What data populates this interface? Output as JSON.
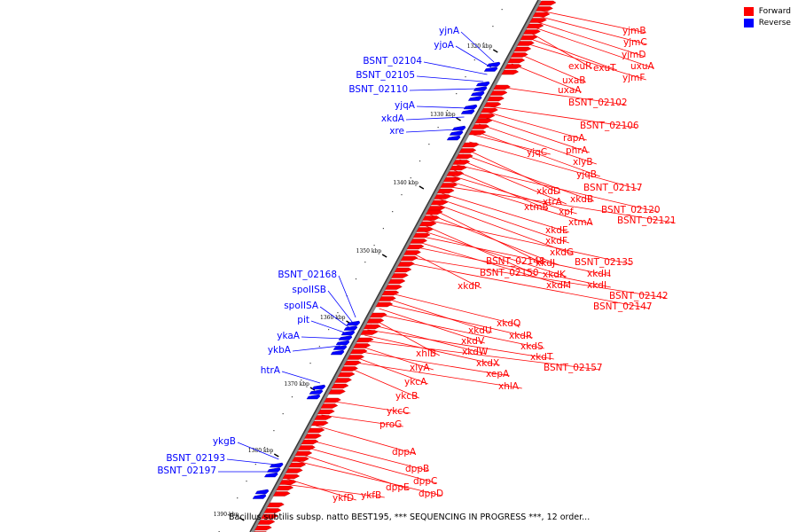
{
  "legend": {
    "forward": "Forward",
    "reverse": "Reverse",
    "forward_color": "#ff0000",
    "reverse_color": "#0000ff"
  },
  "caption": "Bacillus subtilis subsp. natto BEST195, *** SEQUENCING IN PROGRESS ***, 12 order...",
  "ticks": [
    {
      "label": "1320 kbp"
    },
    {
      "label": "1330 kbp"
    },
    {
      "label": "1340 kbp"
    },
    {
      "label": "1350 kbp"
    },
    {
      "label": "1360 kbp"
    },
    {
      "label": "1370 kbp"
    },
    {
      "label": "1380 kbp"
    },
    {
      "label": "1390 kbp"
    }
  ],
  "reverse_genes": [
    "yjnA",
    "yjoA",
    "BSNT_02104",
    "BSNT_02105",
    "BSNT_02110",
    "yjqA",
    "xkdA",
    "xre",
    "BSNT_02168",
    "spoIISB",
    "spoIISA",
    "pit",
    "ykaA",
    "ykbA",
    "htrA",
    "ykgB",
    "BSNT_02193",
    "BSNT_02197"
  ],
  "forward_genes": [
    "yjmB",
    "yjmC",
    "yjmD",
    "uxuA",
    "exuR",
    "exuT",
    "yjmF",
    "uxaB",
    "uxaA",
    "BSNT_02102",
    "BSNT_02106",
    "rapA",
    "phrA",
    "xlyB",
    "yjqB",
    "yjqC",
    "BSNT_02117",
    "xkdD",
    "xkdB",
    "xtrA",
    "BSNT_02120",
    "xtmB",
    "xpf",
    "xtmA",
    "BSNT_02121",
    "xkdE",
    "xkdF",
    "xkdG",
    "BSNT_02148",
    "xkdJ",
    "BSNT_02135",
    "BSNT_02150",
    "xkdK",
    "xkdH",
    "xkdM",
    "xkdI",
    "xkdP",
    "BSNT_02142",
    "BSNT_02147",
    "xkdQ",
    "xkdU",
    "xkdR",
    "xkdV",
    "xkdS",
    "xhlB",
    "xkdW",
    "xkdT",
    "xkdX",
    "BSNT_02157",
    "xlyA",
    "xepA",
    "ykcA",
    "xhlA",
    "ykcB",
    "ykcC",
    "proG",
    "dppA",
    "dppB",
    "dppC",
    "dppE",
    "dppD",
    "ykfD",
    "ykfB"
  ]
}
